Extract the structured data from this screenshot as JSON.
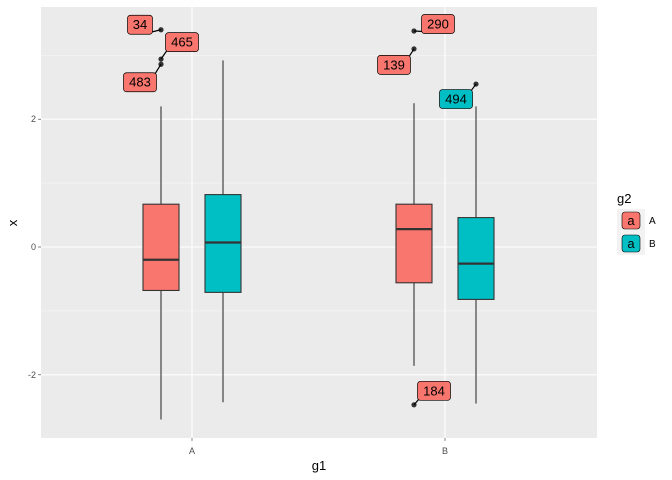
{
  "chart_data": {
    "type": "boxplot",
    "xlabel": "g1",
    "ylabel": "x",
    "categories": [
      "A",
      "B"
    ],
    "ylim": [
      -3.0,
      3.73
    ],
    "yticks": [
      -2,
      0,
      2
    ],
    "grid": true,
    "legend": {
      "title": "g2",
      "placement": "right",
      "entries": [
        {
          "label": "A",
          "key_text": "a",
          "color": "#F8766D"
        },
        {
          "label": "B",
          "key_text": "a",
          "color": "#00BFC4"
        }
      ]
    },
    "groups": [
      {
        "g1": "A",
        "g2": "A",
        "color": "#F8766D",
        "whisker_low": -2.7,
        "q1": -0.68,
        "median": -0.2,
        "q3": 0.67,
        "whisker_high": 2.2,
        "outliers": [
          {
            "y": 3.4,
            "label": "34"
          },
          {
            "y": 2.94,
            "label": "465"
          },
          {
            "y": 2.86,
            "label": "483"
          }
        ]
      },
      {
        "g1": "A",
        "g2": "B",
        "color": "#00BFC4",
        "whisker_low": -2.43,
        "q1": -0.71,
        "median": 0.07,
        "q3": 0.82,
        "whisker_high": 2.92,
        "outliers": []
      },
      {
        "g1": "B",
        "g2": "A",
        "color": "#F8766D",
        "whisker_low": -1.86,
        "q1": -0.56,
        "median": 0.28,
        "q3": 0.67,
        "whisker_high": 2.25,
        "outliers": [
          {
            "y": 3.38,
            "label": "290"
          },
          {
            "y": 3.1,
            "label": "139"
          },
          {
            "y": -2.47,
            "label": "184"
          }
        ]
      },
      {
        "g1": "B",
        "g2": "B",
        "color": "#00BFC4",
        "whisker_low": -2.45,
        "q1": -0.82,
        "median": -0.26,
        "q3": 0.46,
        "whisker_high": 2.2,
        "outliers": [
          {
            "y": 2.55,
            "label": "494"
          }
        ]
      }
    ]
  }
}
